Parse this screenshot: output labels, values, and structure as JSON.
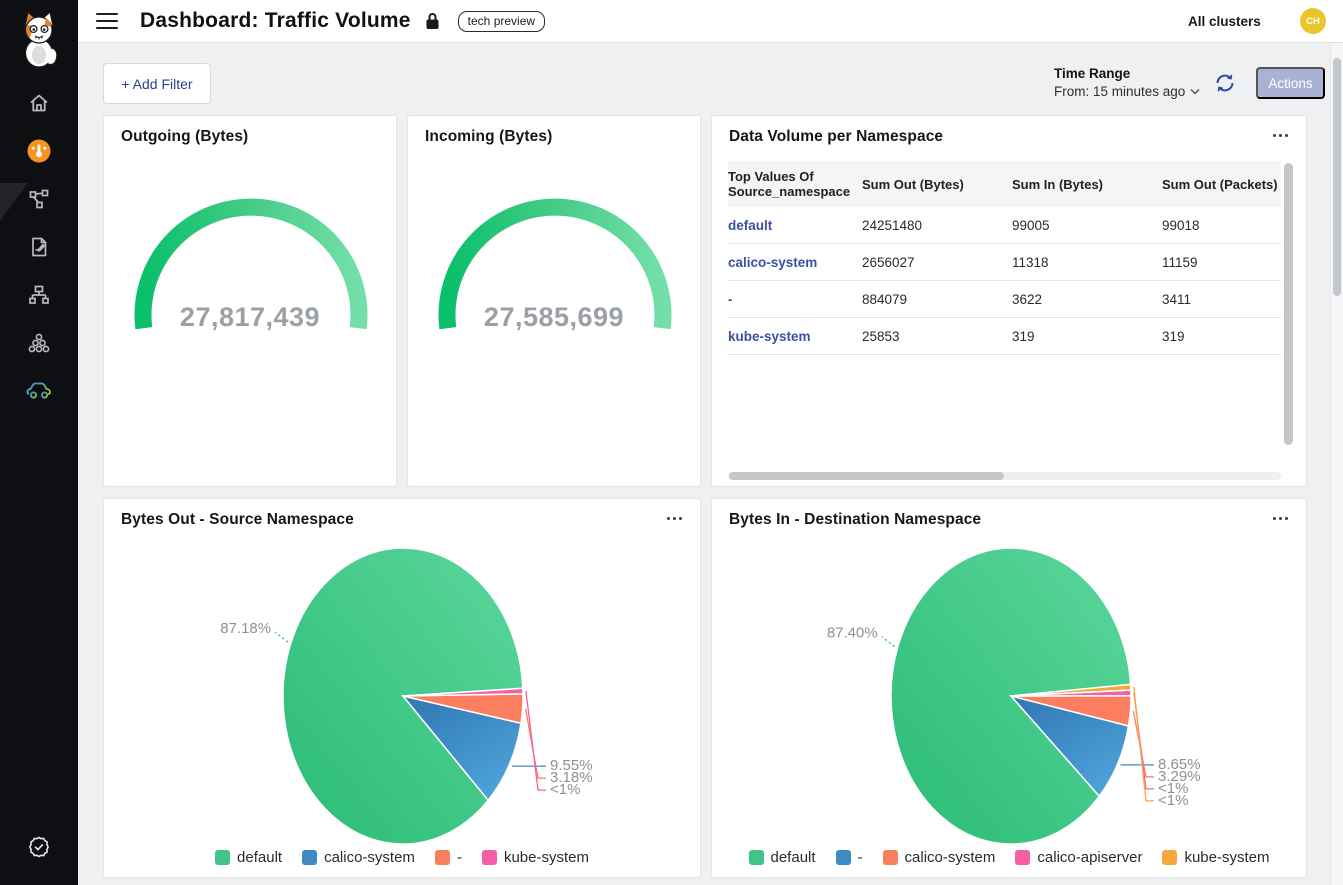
{
  "colors": {
    "sidebar_bg": "#0e0f12",
    "content_bg": "#eff0f2",
    "accent_orange": "#f7941e",
    "link_indigo": "#3b50a5",
    "actions_button": "#a9b2d3",
    "avatar_bg": "#e9c62b",
    "gauge_value_gray": "#9aa0a5",
    "series_green": "#41c488",
    "series_blue": "#3d8ac5",
    "series_salmon": "#fa7e5f",
    "series_pink": "#f75fa8",
    "series_orange": "#f5a83a"
  },
  "header": {
    "title": "Dashboard: Traffic Volume",
    "badge": "tech preview",
    "cluster_selector": "All clusters",
    "avatar_initials": "CH",
    "icons": [
      "menu-icon",
      "lock-icon"
    ]
  },
  "sidebar": {
    "logo": "calico-cat-logo",
    "items": [
      {
        "icon": "home-icon",
        "active": false
      },
      {
        "icon": "dashboard-gauge-icon",
        "active": true
      },
      {
        "icon": "service-graph-icon",
        "active": false
      },
      {
        "icon": "flow-logs-icon",
        "active": false
      },
      {
        "icon": "network-tree-icon",
        "active": false
      },
      {
        "icon": "cluster-nodes-icon",
        "active": false
      },
      {
        "icon": "car-icon",
        "active": false
      }
    ],
    "bottom_items": [
      {
        "icon": "compliance-badge-icon"
      }
    ]
  },
  "toolbar": {
    "add_filter_label": "+ Add Filter",
    "time_range_label": "Time Range",
    "time_range_value": "From: 15 minutes ago",
    "refresh_icon": "refresh-icon",
    "actions_label": "Actions"
  },
  "cards": {
    "table": {
      "title": "Data Volume per Namespace",
      "columns": [
        "Top Values Of Source_namespace",
        "Sum Out (Bytes)",
        "Sum In (Bytes)",
        "Sum Out (Packets)"
      ],
      "rows": [
        {
          "namespace": "default",
          "sum_out_bytes": "24251480",
          "sum_in_bytes": "99005",
          "sum_out_packets": "99018"
        },
        {
          "namespace": "calico-system",
          "sum_out_bytes": "2656027",
          "sum_in_bytes": "11318",
          "sum_out_packets": "11159"
        },
        {
          "namespace": "-",
          "sum_out_bytes": "884079",
          "sum_in_bytes": "3622",
          "sum_out_packets": "3411"
        },
        {
          "namespace": "kube-system",
          "sum_out_bytes": "25853",
          "sum_in_bytes": "319",
          "sum_out_packets": "319"
        }
      ]
    }
  },
  "chart_data": [
    {
      "type": "gauge",
      "title": "Outgoing (Bytes)",
      "value": 27817439,
      "display_value": "27,817,439",
      "color_start": "#0abf6c",
      "color_mid": "#45cc87",
      "color_end": "#74dfa8"
    },
    {
      "type": "gauge",
      "title": "Incoming (Bytes)",
      "value": 27585699,
      "display_value": "27,585,699",
      "color_start": "#0abf6c",
      "color_mid": "#45cc87",
      "color_end": "#74dfa8"
    },
    {
      "type": "pie",
      "title": "Bytes Out - Source Namespace",
      "legend_position": "bottom",
      "slices": [
        {
          "label": "default",
          "pct": 87.18,
          "display": "87.18%",
          "color": "#41c488"
        },
        {
          "label": "calico-system",
          "pct": 9.55,
          "display": "9.55%",
          "color": "#3d8ac5"
        },
        {
          "label": "-",
          "pct": 3.18,
          "display": "3.18%",
          "color": "#fa7e5f"
        },
        {
          "label": "kube-system",
          "pct": 0.09,
          "display": "<1%",
          "color": "#f75fa8"
        }
      ]
    },
    {
      "type": "pie",
      "title": "Bytes In - Destination Namespace",
      "legend_position": "bottom",
      "slices": [
        {
          "label": "default",
          "pct": 87.4,
          "display": "87.40%",
          "color": "#41c488"
        },
        {
          "label": "-",
          "pct": 8.65,
          "display": "8.65%",
          "color": "#3d8ac5"
        },
        {
          "label": "calico-system",
          "pct": 3.29,
          "display": "3.29%",
          "color": "#fa7e5f"
        },
        {
          "label": "calico-apiserver",
          "pct": 0.4,
          "display": "<1%",
          "color": "#f75fa8"
        },
        {
          "label": "kube-system",
          "pct": 0.26,
          "display": "<1%",
          "color": "#f5a83a"
        }
      ]
    }
  ]
}
